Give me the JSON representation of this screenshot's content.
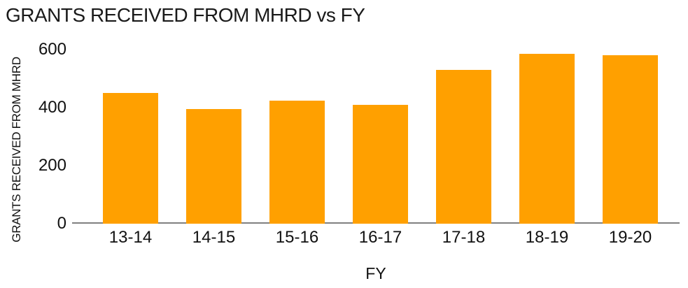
{
  "chart_data": {
    "type": "bar",
    "title": "GRANTS RECEIVED FROM MHRD vs FY",
    "xlabel": "FY",
    "ylabel": "GRANTS RECEIVED FROM MHRD",
    "categories": [
      "13-14",
      "14-15",
      "15-16",
      "16-17",
      "17-18",
      "18-19",
      "19-20"
    ],
    "values": [
      450,
      395,
      425,
      410,
      530,
      585,
      580
    ],
    "ylim": [
      0,
      600
    ],
    "yticks": [
      0,
      200,
      400,
      600
    ],
    "grid": false,
    "legend": false,
    "bar_color": "#FFA000",
    "axis_color": "#808080",
    "text_color": "#1a1a1a"
  }
}
